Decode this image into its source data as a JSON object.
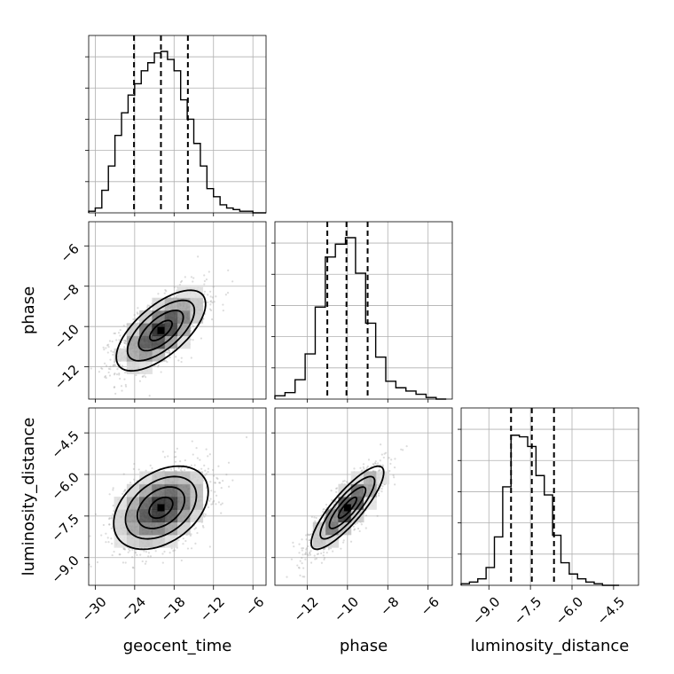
{
  "chart_data": {
    "type": "corner",
    "parameters": [
      "geocent_time",
      "phase",
      "luminosity_distance"
    ],
    "axis_labels": [
      "geocent_time",
      "phase",
      "luminosity_distance"
    ],
    "ticks": {
      "geocent_time": {
        "values": [
          -30,
          -24,
          -18,
          -12,
          -6
        ],
        "labels": [
          "−30",
          "−24",
          "−18",
          "−12",
          "−6"
        ],
        "range": [
          -31,
          -4
        ]
      },
      "phase": {
        "values": [
          -12,
          -10,
          -8,
          -6
        ],
        "labels": [
          "−12",
          "−10",
          "−8",
          "−6"
        ],
        "range": [
          -13.6,
          -4.8
        ]
      },
      "luminosity_distance": {
        "values": [
          -9.0,
          -7.5,
          -6.0,
          -4.5
        ],
        "labels": [
          "−9.0",
          "−7.5",
          "−6.0",
          "−4.5"
        ],
        "range": [
          -10.0,
          -3.6
        ]
      }
    },
    "marginals": [
      {
        "parameter": "geocent_time",
        "quantiles": [
          -24.1,
          -20.0,
          -15.9
        ],
        "bins": [
          -31,
          -30,
          -29,
          -28,
          -27,
          -26,
          -25,
          -24,
          -23,
          -22,
          -21,
          -20,
          -19,
          -18,
          -17,
          -16,
          -15,
          -14,
          -13,
          -12,
          -11,
          -10,
          -9,
          -8,
          -7,
          -6,
          -5,
          -4
        ],
        "counts": [
          0.01,
          0.03,
          0.14,
          0.29,
          0.48,
          0.62,
          0.73,
          0.8,
          0.88,
          0.93,
          0.99,
          1.0,
          0.95,
          0.88,
          0.7,
          0.58,
          0.43,
          0.29,
          0.15,
          0.1,
          0.05,
          0.03,
          0.02,
          0.01,
          0.01,
          0.0,
          0.0
        ]
      },
      {
        "parameter": "phase",
        "quantiles": [
          -11.0,
          -10.05,
          -9.0
        ],
        "bins": [
          -13.6,
          -13.1,
          -12.6,
          -12.1,
          -11.6,
          -11.1,
          -10.6,
          -10.1,
          -9.6,
          -9.1,
          -8.6,
          -8.1,
          -7.6,
          -7.1,
          -6.6,
          -6.1,
          -5.6,
          -5.1
        ],
        "counts": [
          0.02,
          0.04,
          0.12,
          0.28,
          0.57,
          0.88,
          0.96,
          1.0,
          0.78,
          0.47,
          0.26,
          0.11,
          0.07,
          0.05,
          0.03,
          0.01,
          0.0
        ]
      },
      {
        "parameter": "luminosity_distance",
        "quantiles": [
          -8.2,
          -7.45,
          -6.65
        ],
        "bins": [
          -10.0,
          -9.7,
          -9.4,
          -9.1,
          -8.8,
          -8.5,
          -8.2,
          -7.9,
          -7.6,
          -7.3,
          -7.0,
          -6.7,
          -6.4,
          -6.1,
          -5.8,
          -5.5,
          -5.2,
          -4.9,
          -4.6,
          -4.3
        ],
        "counts": [
          0.01,
          0.02,
          0.04,
          0.11,
          0.3,
          0.61,
          0.93,
          0.92,
          0.86,
          0.68,
          0.56,
          0.31,
          0.14,
          0.07,
          0.04,
          0.02,
          0.01,
          0.0,
          0.0
        ]
      }
    ],
    "pairs": [
      {
        "x": "geocent_time",
        "y": "phase",
        "center": [
          -20,
          -10.2
        ],
        "sd": [
          3.4,
          1.0
        ],
        "correlation": 0.66,
        "contour_levels_sigma": [
          0.5,
          1.0,
          1.5,
          2.0
        ]
      },
      {
        "x": "geocent_time",
        "y": "luminosity_distance",
        "center": [
          -20,
          -7.2
        ],
        "sd": [
          3.6,
          0.75
        ],
        "correlation": 0.38,
        "contour_levels_sigma": [
          0.5,
          1.0,
          1.5,
          2.0
        ]
      },
      {
        "x": "phase",
        "y": "luminosity_distance",
        "center": [
          -10.0,
          -7.2
        ],
        "sd": [
          0.9,
          0.75
        ],
        "correlation": 0.85,
        "contour_levels_sigma": [
          0.5,
          1.0,
          1.5,
          2.0
        ]
      }
    ],
    "grid": true,
    "legend": "none"
  }
}
